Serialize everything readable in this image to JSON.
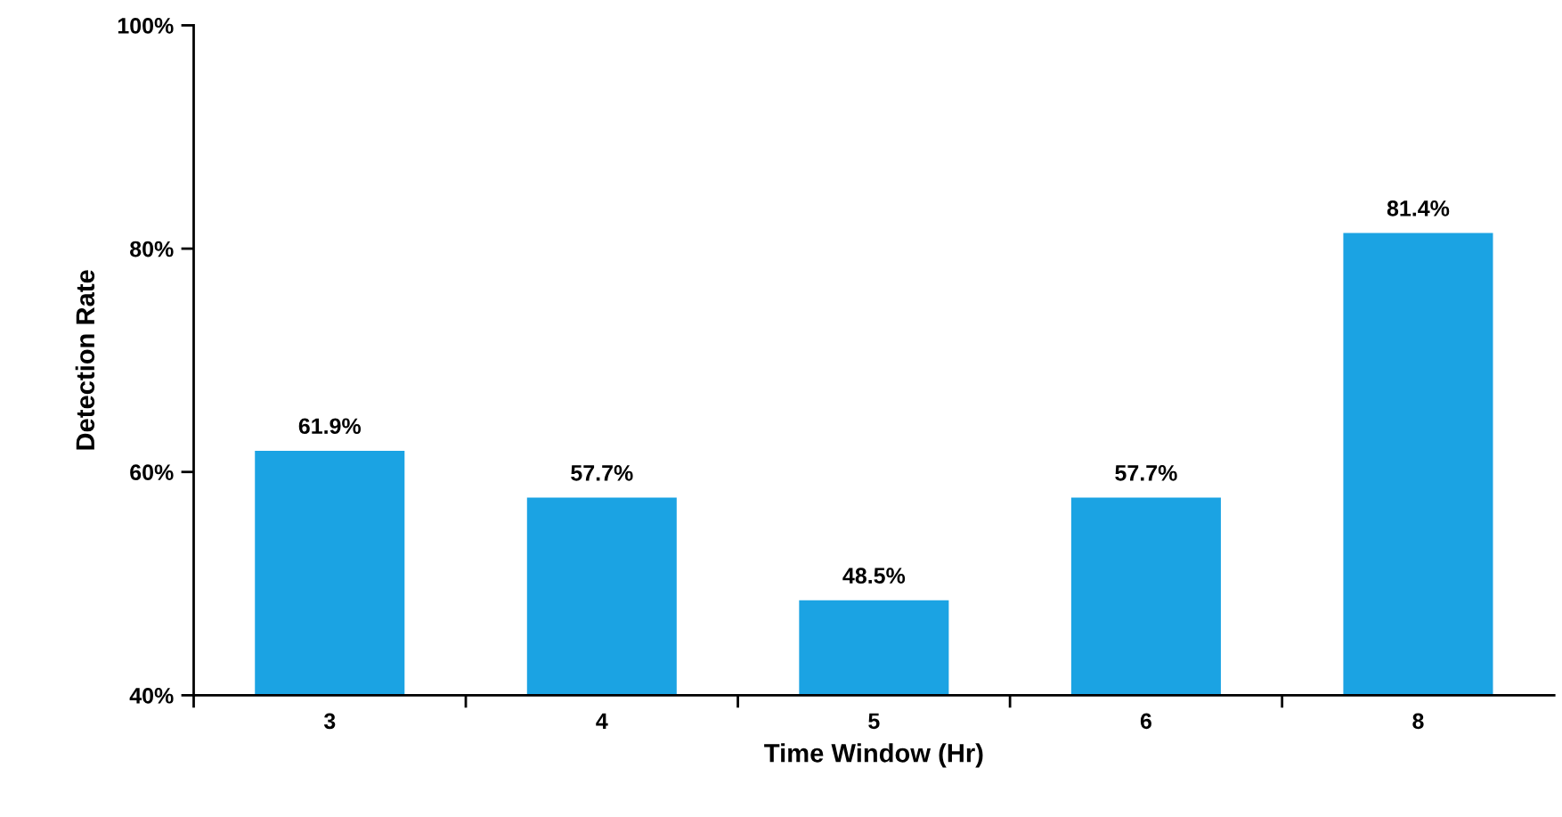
{
  "chart_data": {
    "type": "bar",
    "xlabel": "Time Window (Hr)",
    "ylabel": "Detection Rate",
    "categories": [
      "3",
      "4",
      "5",
      "6",
      "8"
    ],
    "values": [
      61.9,
      57.7,
      48.5,
      57.7,
      81.4
    ],
    "value_labels": [
      "61.9%",
      "57.7%",
      "48.5%",
      "57.7%",
      "81.4%"
    ],
    "color": "#1ba3e3",
    "ylim": [
      40,
      100
    ],
    "yticks": [
      {
        "value": 40,
        "label": "40%"
      },
      {
        "value": 60,
        "label": "60%"
      },
      {
        "value": 80,
        "label": "80%"
      },
      {
        "value": 100,
        "label": "100%"
      }
    ],
    "grid": false,
    "legend": false
  }
}
